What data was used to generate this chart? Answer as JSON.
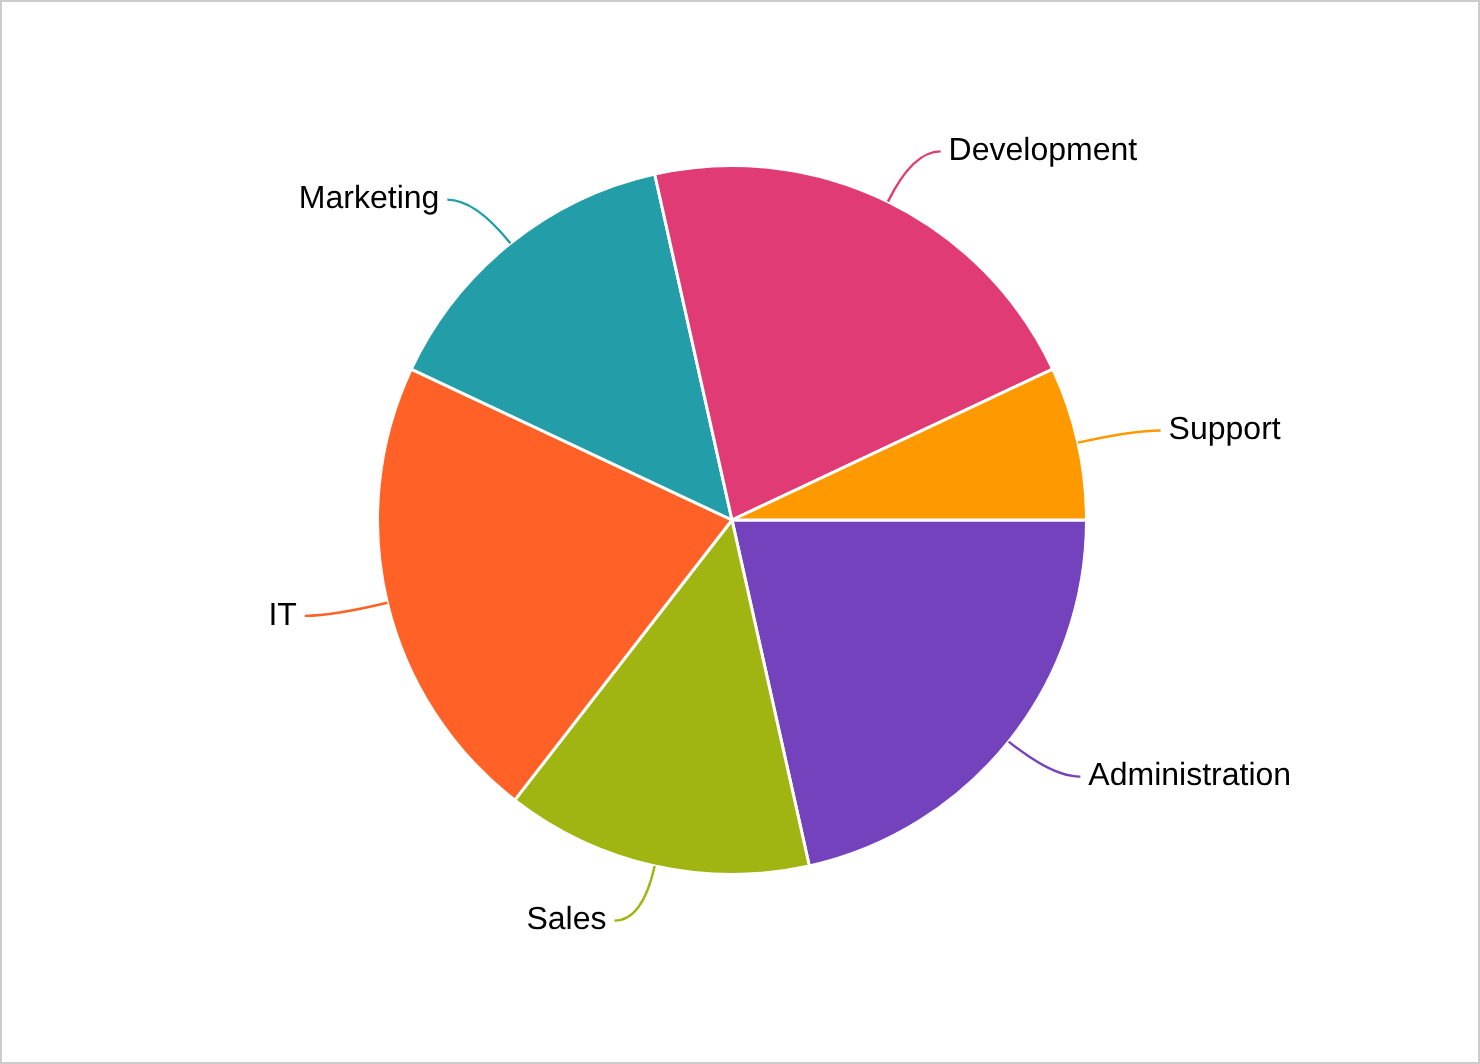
{
  "chart_data": {
    "type": "pie",
    "categories": [
      "Administration",
      "Sales",
      "IT",
      "Marketing",
      "Development",
      "Support"
    ],
    "values": [
      21.5,
      14,
      21.5,
      14.5,
      21.5,
      7
    ],
    "colors": [
      "#7442bd",
      "#a0b512",
      "#ff6126",
      "#239ea8",
      "#e03b74",
      "#ff9900"
    ],
    "legend": false
  }
}
